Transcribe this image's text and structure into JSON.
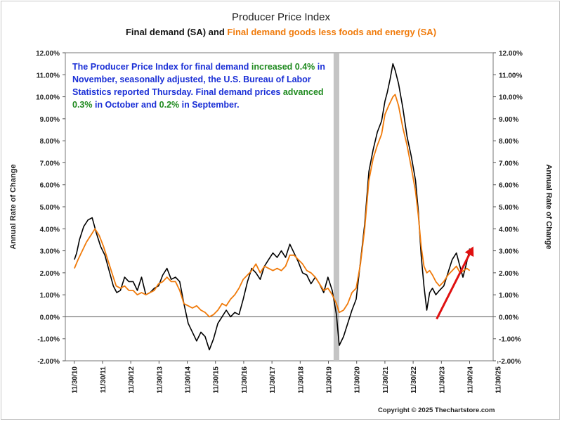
{
  "chart_data": {
    "type": "line",
    "title": "Producer Price Index",
    "subtitle_part1": "Final demand (SA) and ",
    "subtitle_part2": "Final demand goods less foods and energy (SA)",
    "ylabel_left": "Annual Rate of Change",
    "ylabel_right": "Annual Rate of Change",
    "ylim": [
      -2,
      12
    ],
    "yticks": [
      -2,
      -1,
      0,
      1,
      2,
      3,
      4,
      5,
      6,
      7,
      8,
      9,
      10,
      11,
      12
    ],
    "ytick_labels": [
      "-2.00%",
      "-1.00%",
      "0.00%",
      "1.00%",
      "2.00%",
      "3.00%",
      "4.00%",
      "5.00%",
      "6.00%",
      "7.00%",
      "8.00%",
      "9.00%",
      "10.00%",
      "11.00%",
      "12.00%"
    ],
    "xlim": [
      2010.6,
      2025.75
    ],
    "xticks": [
      2010.917,
      2011.917,
      2012.917,
      2013.917,
      2014.917,
      2015.917,
      2016.917,
      2017.917,
      2018.917,
      2019.917,
      2020.917,
      2021.917,
      2022.917,
      2023.917,
      2024.917,
      2025.917
    ],
    "xtick_labels": [
      "11/30/10",
      "11/30/11",
      "11/30/12",
      "11/30/13",
      "11/30/14",
      "11/30/15",
      "11/30/16",
      "11/30/17",
      "11/30/18",
      "11/30/19",
      "11/30/20",
      "11/30/21",
      "11/30/22",
      "11/30/23",
      "11/30/24",
      "11/30/25"
    ],
    "grid": false,
    "zero_line": true,
    "recession_shading": [
      2020.1,
      2020.3
    ],
    "series": [
      {
        "name": "Final demand (SA)",
        "color": "#000000",
        "points": [
          [
            2010.92,
            2.6
          ],
          [
            2011.0,
            2.9
          ],
          [
            2011.1,
            3.5
          ],
          [
            2011.25,
            4.1
          ],
          [
            2011.4,
            4.4
          ],
          [
            2011.55,
            4.5
          ],
          [
            2011.7,
            3.8
          ],
          [
            2011.85,
            3.2
          ],
          [
            2012.0,
            2.8
          ],
          [
            2012.15,
            2.1
          ],
          [
            2012.3,
            1.4
          ],
          [
            2012.42,
            1.1
          ],
          [
            2012.55,
            1.2
          ],
          [
            2012.7,
            1.8
          ],
          [
            2012.85,
            1.6
          ],
          [
            2013.0,
            1.6
          ],
          [
            2013.15,
            1.2
          ],
          [
            2013.3,
            1.8
          ],
          [
            2013.45,
            1.0
          ],
          [
            2013.6,
            1.1
          ],
          [
            2013.75,
            1.3
          ],
          [
            2013.9,
            1.4
          ],
          [
            2014.05,
            1.9
          ],
          [
            2014.2,
            2.2
          ],
          [
            2014.35,
            1.7
          ],
          [
            2014.5,
            1.8
          ],
          [
            2014.65,
            1.6
          ],
          [
            2014.8,
            0.6
          ],
          [
            2014.95,
            -0.3
          ],
          [
            2015.1,
            -0.7
          ],
          [
            2015.25,
            -1.1
          ],
          [
            2015.4,
            -0.7
          ],
          [
            2015.55,
            -0.9
          ],
          [
            2015.7,
            -1.5
          ],
          [
            2015.85,
            -1.0
          ],
          [
            2016.0,
            -0.3
          ],
          [
            2016.15,
            0.0
          ],
          [
            2016.3,
            0.3
          ],
          [
            2016.45,
            0.0
          ],
          [
            2016.6,
            0.2
          ],
          [
            2016.75,
            0.1
          ],
          [
            2016.9,
            0.8
          ],
          [
            2017.05,
            1.6
          ],
          [
            2017.2,
            2.2
          ],
          [
            2017.35,
            2.0
          ],
          [
            2017.5,
            1.7
          ],
          [
            2017.65,
            2.3
          ],
          [
            2017.8,
            2.6
          ],
          [
            2017.95,
            2.9
          ],
          [
            2018.1,
            2.7
          ],
          [
            2018.25,
            3.0
          ],
          [
            2018.4,
            2.7
          ],
          [
            2018.55,
            3.3
          ],
          [
            2018.7,
            2.9
          ],
          [
            2018.85,
            2.5
          ],
          [
            2019.0,
            2.0
          ],
          [
            2019.15,
            1.9
          ],
          [
            2019.3,
            1.5
          ],
          [
            2019.45,
            1.8
          ],
          [
            2019.6,
            1.5
          ],
          [
            2019.75,
            1.1
          ],
          [
            2019.9,
            1.8
          ],
          [
            2020.05,
            1.2
          ],
          [
            2020.2,
            0.1
          ],
          [
            2020.3,
            -1.3
          ],
          [
            2020.45,
            -0.9
          ],
          [
            2020.6,
            -0.3
          ],
          [
            2020.75,
            0.3
          ],
          [
            2020.9,
            0.8
          ],
          [
            2021.05,
            2.5
          ],
          [
            2021.2,
            4.2
          ],
          [
            2021.35,
            6.6
          ],
          [
            2021.5,
            7.6
          ],
          [
            2021.65,
            8.4
          ],
          [
            2021.8,
            8.9
          ],
          [
            2021.92,
            9.8
          ],
          [
            2022.0,
            10.2
          ],
          [
            2022.1,
            10.8
          ],
          [
            2022.2,
            11.5
          ],
          [
            2022.28,
            11.2
          ],
          [
            2022.4,
            10.6
          ],
          [
            2022.55,
            9.5
          ],
          [
            2022.7,
            8.2
          ],
          [
            2022.85,
            7.3
          ],
          [
            2023.0,
            6.2
          ],
          [
            2023.1,
            4.8
          ],
          [
            2023.2,
            2.8
          ],
          [
            2023.3,
            1.4
          ],
          [
            2023.4,
            0.3
          ],
          [
            2023.5,
            1.1
          ],
          [
            2023.6,
            1.3
          ],
          [
            2023.72,
            1.0
          ],
          [
            2023.85,
            1.2
          ],
          [
            2024.0,
            1.4
          ],
          [
            2024.15,
            2.0
          ],
          [
            2024.3,
            2.6
          ],
          [
            2024.45,
            2.9
          ],
          [
            2024.55,
            2.4
          ],
          [
            2024.68,
            1.8
          ],
          [
            2024.8,
            2.4
          ],
          [
            2024.92,
            3.1
          ]
        ]
      },
      {
        "name": "Final demand goods less foods and energy (SA)",
        "color": "#f07a0a",
        "points": [
          [
            2010.92,
            2.2
          ],
          [
            2011.05,
            2.6
          ],
          [
            2011.2,
            3.0
          ],
          [
            2011.35,
            3.4
          ],
          [
            2011.5,
            3.7
          ],
          [
            2011.65,
            4.0
          ],
          [
            2011.8,
            3.7
          ],
          [
            2011.95,
            3.2
          ],
          [
            2012.1,
            2.6
          ],
          [
            2012.25,
            2.0
          ],
          [
            2012.4,
            1.4
          ],
          [
            2012.55,
            1.3
          ],
          [
            2012.7,
            1.4
          ],
          [
            2012.85,
            1.2
          ],
          [
            2013.0,
            1.2
          ],
          [
            2013.15,
            1.0
          ],
          [
            2013.3,
            1.1
          ],
          [
            2013.45,
            1.0
          ],
          [
            2013.6,
            1.1
          ],
          [
            2013.75,
            1.2
          ],
          [
            2013.9,
            1.5
          ],
          [
            2014.05,
            1.6
          ],
          [
            2014.2,
            1.8
          ],
          [
            2014.35,
            1.6
          ],
          [
            2014.5,
            1.6
          ],
          [
            2014.65,
            1.2
          ],
          [
            2014.8,
            0.6
          ],
          [
            2014.95,
            0.5
          ],
          [
            2015.1,
            0.4
          ],
          [
            2015.25,
            0.5
          ],
          [
            2015.4,
            0.3
          ],
          [
            2015.55,
            0.2
          ],
          [
            2015.7,
            0.0
          ],
          [
            2015.85,
            0.1
          ],
          [
            2016.0,
            0.3
          ],
          [
            2016.15,
            0.6
          ],
          [
            2016.3,
            0.5
          ],
          [
            2016.45,
            0.8
          ],
          [
            2016.6,
            1.0
          ],
          [
            2016.75,
            1.3
          ],
          [
            2016.9,
            1.7
          ],
          [
            2017.05,
            1.9
          ],
          [
            2017.2,
            2.1
          ],
          [
            2017.35,
            2.4
          ],
          [
            2017.5,
            2.0
          ],
          [
            2017.65,
            2.3
          ],
          [
            2017.8,
            2.2
          ],
          [
            2017.95,
            2.1
          ],
          [
            2018.1,
            2.2
          ],
          [
            2018.25,
            2.1
          ],
          [
            2018.4,
            2.3
          ],
          [
            2018.55,
            2.8
          ],
          [
            2018.7,
            2.8
          ],
          [
            2018.85,
            2.6
          ],
          [
            2019.0,
            2.4
          ],
          [
            2019.15,
            2.1
          ],
          [
            2019.3,
            2.0
          ],
          [
            2019.45,
            1.8
          ],
          [
            2019.6,
            1.5
          ],
          [
            2019.75,
            1.2
          ],
          [
            2019.9,
            1.3
          ],
          [
            2020.05,
            1.0
          ],
          [
            2020.2,
            0.6
          ],
          [
            2020.3,
            0.2
          ],
          [
            2020.45,
            0.3
          ],
          [
            2020.6,
            0.6
          ],
          [
            2020.75,
            1.1
          ],
          [
            2020.9,
            1.3
          ],
          [
            2021.05,
            2.4
          ],
          [
            2021.2,
            4.0
          ],
          [
            2021.35,
            6.2
          ],
          [
            2021.5,
            7.2
          ],
          [
            2021.65,
            7.8
          ],
          [
            2021.8,
            8.3
          ],
          [
            2021.92,
            9.2
          ],
          [
            2022.05,
            9.6
          ],
          [
            2022.2,
            10.0
          ],
          [
            2022.28,
            10.1
          ],
          [
            2022.4,
            9.6
          ],
          [
            2022.55,
            8.6
          ],
          [
            2022.7,
            7.8
          ],
          [
            2022.85,
            6.8
          ],
          [
            2023.0,
            5.7
          ],
          [
            2023.1,
            4.6
          ],
          [
            2023.2,
            3.2
          ],
          [
            2023.3,
            2.3
          ],
          [
            2023.4,
            2.0
          ],
          [
            2023.5,
            2.1
          ],
          [
            2023.6,
            1.9
          ],
          [
            2023.72,
            1.6
          ],
          [
            2023.85,
            1.4
          ],
          [
            2024.0,
            1.6
          ],
          [
            2024.15,
            1.9
          ],
          [
            2024.3,
            2.1
          ],
          [
            2024.45,
            2.3
          ],
          [
            2024.58,
            2.0
          ],
          [
            2024.7,
            2.1
          ],
          [
            2024.82,
            2.2
          ],
          [
            2024.92,
            2.1
          ]
        ]
      }
    ],
    "annotation": {
      "text_blue_1": "The Producer Price Index for final demand ",
      "text_green_1": "increased 0.4%",
      "text_blue_2": " in November, seasonally adjusted, the U.S. Bureau of Labor Statistics reported Thursday. Final demand prices ",
      "text_green_2": "advanced 0.3%",
      "text_blue_3": " in October and ",
      "text_green_3": "0.2%",
      "text_blue_4": " in September."
    },
    "arrow": {
      "from": [
        2023.75,
        -0.1
      ],
      "to": [
        2025.05,
        3.2
      ],
      "color": "#e01010"
    }
  },
  "copyright": "Copyright © 2025 Thechartstore.com"
}
